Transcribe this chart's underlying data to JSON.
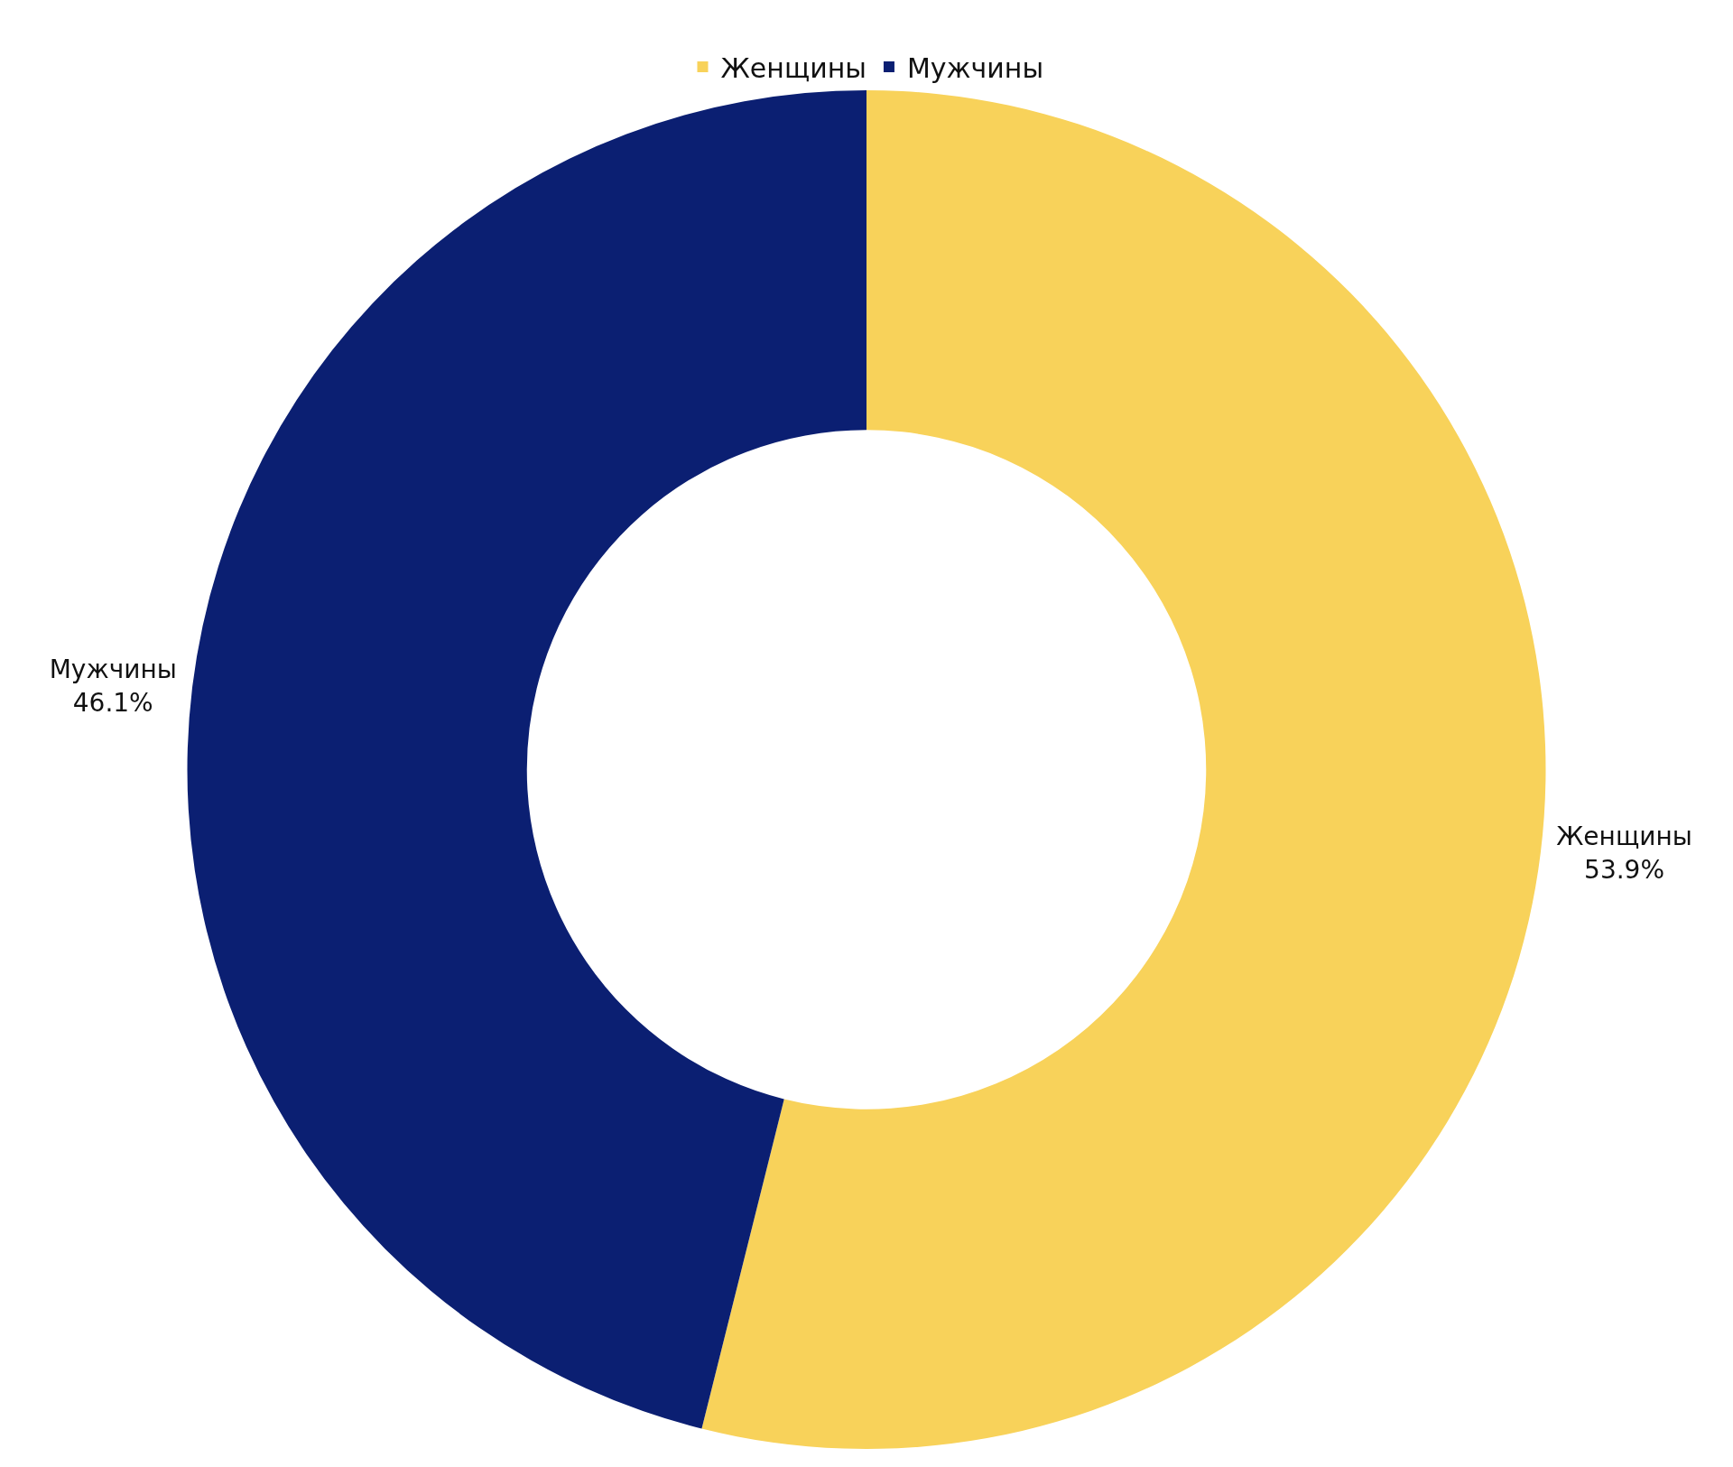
{
  "chart_data": {
    "type": "donut",
    "categories": [
      "Женщины",
      "Мужчины"
    ],
    "values": [
      53.9,
      46.1
    ],
    "value_labels": [
      "53.9%",
      "46.1%"
    ],
    "colors": [
      "#f8d25a",
      "#0b1f72"
    ],
    "legend": "top"
  }
}
